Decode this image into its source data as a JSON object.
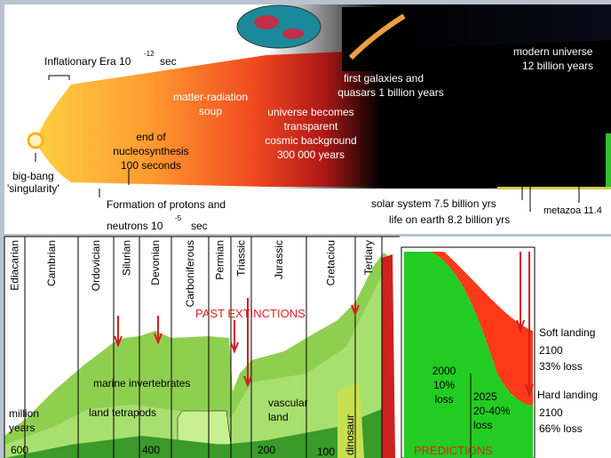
{
  "cosmic": {
    "inflation": {
      "text": "Inflationary Era 10",
      "exp": "-12",
      "unit": "sec"
    },
    "big_bang": [
      "big-bang",
      "'singularity'"
    ],
    "protons": {
      "line1": "Formation of protons and",
      "line2": "neutrons  10",
      "exp": "-5",
      "unit": "sec"
    },
    "soup": [
      "matter-radiation",
      "soup"
    ],
    "nucleosynthesis": [
      "end of",
      "nucleosynthesis",
      "100 seconds"
    ],
    "transparent": [
      "universe becomes",
      "transparent",
      "cosmic background",
      "300 000 years"
    ],
    "galaxies": [
      "first galaxies and",
      "quasars 1 billion years"
    ],
    "modern": [
      "modern universe",
      "12 billion years"
    ],
    "solar": "solar system 7.5 billion yrs",
    "life": "life on earth 8.2 billion yrs",
    "metazoa": "metazoa 11.4"
  },
  "periods": [
    "Ediacarian",
    "Cambrian",
    "Ordovician",
    "Silurian",
    "Devonian",
    "Carboniferous",
    "Permian",
    "Triassic",
    "Jurassic",
    "Cretaciou",
    "Tertiary"
  ],
  "past_extinctions": "PAST EXTINCTIONS",
  "groups": [
    "marine invertebrates",
    "land tetrapods",
    "vascular",
    "land",
    "dinosaur"
  ],
  "axis": {
    "label": [
      "million",
      "years"
    ],
    "ticks": [
      "600",
      "400",
      "200",
      "100"
    ]
  },
  "predictions": {
    "title": "PREDICTIONS",
    "y2000": [
      "2000",
      "10%",
      "loss"
    ],
    "y2025": [
      "2025",
      "20-40%",
      "loss"
    ],
    "soft": [
      "Soft landing",
      "2100",
      "33% loss"
    ],
    "hard": [
      "Hard landing",
      "2100",
      "66% loss"
    ]
  }
}
